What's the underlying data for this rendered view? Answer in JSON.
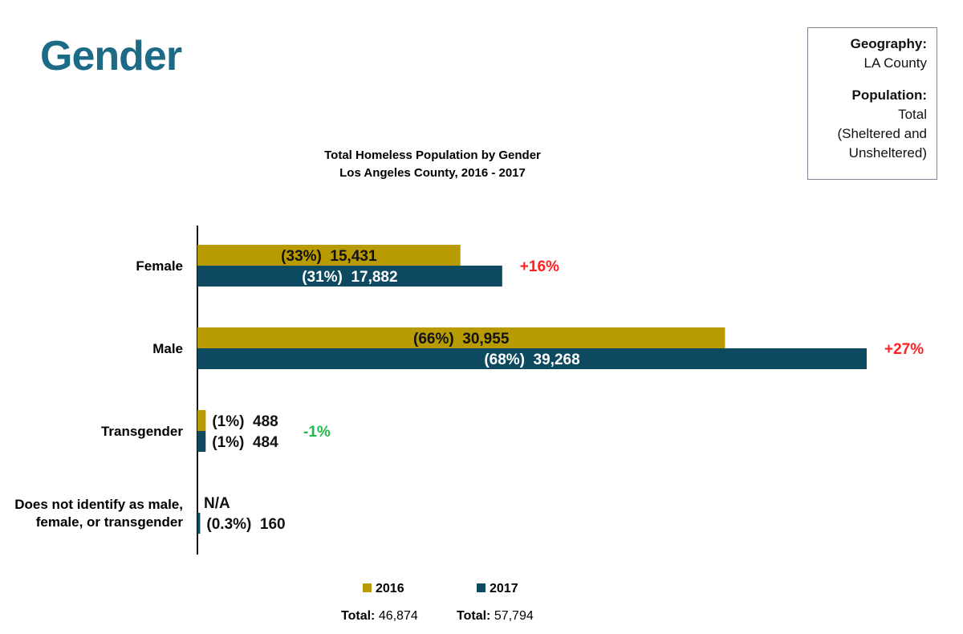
{
  "page": {
    "title": "Gender"
  },
  "info_box": {
    "geography_label": "Geography:",
    "geography_value": "LA County",
    "population_label": "Population:",
    "population_value_lines": [
      "Total",
      "(Sheltered and",
      "Unsheltered)"
    ]
  },
  "chart_data": {
    "type": "bar",
    "orientation": "horizontal",
    "title": "Total Homeless Population by Gender",
    "subtitle": "Los Angeles County, 2016 - 2017",
    "categories": [
      [
        "Female"
      ],
      [
        "Male"
      ],
      [
        "Transgender"
      ],
      [
        "Does not identify as male,",
        "female, or transgender"
      ]
    ],
    "series": [
      {
        "name": "2016",
        "color": "#b89b02",
        "values": [
          15431,
          30955,
          488,
          null
        ],
        "labels": [
          "(33%)  15,431",
          "(66%)  30,955",
          "(1%)  488",
          "N/A"
        ]
      },
      {
        "name": "2017",
        "color": "#0e4a5f",
        "values": [
          17882,
          39268,
          484,
          160
        ],
        "labels": [
          "(31%)  17,882",
          "(68%)  39,268",
          "(1%)  484",
          "(0.3%)  160"
        ]
      }
    ],
    "changes": [
      {
        "text": "+16%",
        "color": "#ff2020"
      },
      {
        "text": "+27%",
        "color": "#ff2020"
      },
      {
        "text": "-1%",
        "color": "#1fb84f"
      },
      null
    ],
    "xlim": [
      0,
      39268
    ],
    "legend_position": "bottom",
    "totals": [
      {
        "label": "Total:",
        "value": "46,874"
      },
      {
        "label": "Total:",
        "value": "57,794"
      }
    ]
  }
}
